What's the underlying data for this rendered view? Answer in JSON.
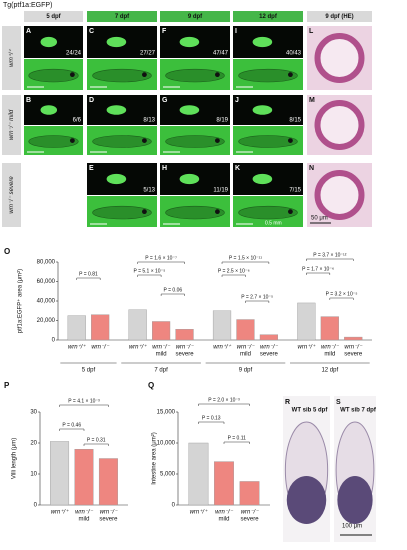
{
  "header": {
    "title": "Tg(ptf1a:EGFP)",
    "columns": [
      "5 dpf",
      "7 dpf",
      "9 dpf",
      "12 dpf",
      "9 dpf (HE)"
    ]
  },
  "rows": [
    "wrn⁺/⁺",
    "wrn⁻/⁻ mild",
    "wrn⁻/⁻ severe"
  ],
  "panels": [
    {
      "letter": "A",
      "count": "24/24"
    },
    {
      "letter": "B",
      "count": "6/6"
    },
    {
      "letter": "C",
      "count": "27/27"
    },
    {
      "letter": "D",
      "count": "8/13"
    },
    {
      "letter": "E",
      "count": "5/13"
    },
    {
      "letter": "F",
      "count": "47/47"
    },
    {
      "letter": "G",
      "count": "8/19"
    },
    {
      "letter": "H",
      "count": "11/19"
    },
    {
      "letter": "I",
      "count": "40/43"
    },
    {
      "letter": "J",
      "count": "8/15"
    },
    {
      "letter": "K",
      "count": "7/15",
      "scale": "0.5 mm"
    }
  ],
  "he_panels": [
    {
      "letter": "L"
    },
    {
      "letter": "M"
    },
    {
      "letter": "N",
      "scale": "50 μm"
    }
  ],
  "chart_data": [
    {
      "type": "bar",
      "letter": "O",
      "ylabel": "ptf1a:EGFP⁺ area (μm²)",
      "ylim": [
        0,
        80000
      ],
      "yticks": [
        0,
        {
          "value": 20000,
          "label": "20,000"
        },
        {
          "value": 40000,
          "label": "40,000"
        },
        {
          "value": 60000,
          "label": "60,000"
        },
        {
          "value": 80000,
          "label": "80,000"
        }
      ],
      "groups": [
        {
          "name": "5 dpf",
          "categories": [
            [
              "wrn⁺/⁺"
            ],
            [
              "wrn⁻/⁻"
            ]
          ],
          "values": [
            25000,
            26000
          ],
          "colors": [
            "#d4d4d4",
            "#ee8680"
          ]
        },
        {
          "name": "7 dpf",
          "categories": [
            [
              "wrn⁺/⁺"
            ],
            [
              "wrn⁻/⁻",
              "mild"
            ],
            [
              "wrn⁻/⁻",
              "severe"
            ]
          ],
          "values": [
            31000,
            19000,
            11000
          ],
          "colors": [
            "#d4d4d4",
            "#ee8680",
            "#ee8680"
          ]
        },
        {
          "name": "9 dpf",
          "categories": [
            [
              "wrn⁺/⁺"
            ],
            [
              "wrn⁻/⁻",
              "mild"
            ],
            [
              "wrn⁻/⁻",
              "severe"
            ]
          ],
          "values": [
            30000,
            21000,
            5500
          ],
          "colors": [
            "#d4d4d4",
            "#ee8680",
            "#ee8680"
          ]
        },
        {
          "name": "12 dpf",
          "categories": [
            [
              "wrn⁺/⁺"
            ],
            [
              "wrn⁻/⁻",
              "mild"
            ],
            [
              "wrn⁻/⁻",
              "severe"
            ]
          ],
          "values": [
            38000,
            24000,
            3000
          ],
          "colors": [
            "#d4d4d4",
            "#ee8680",
            "#ee8680"
          ]
        }
      ],
      "annotations": [
        "P = 0.81",
        "P = 1.6 × 10⁻⁷",
        "P = 5.1 × 10⁻⁵",
        "P = 0.06",
        "P = 1.5 × 10⁻¹¹",
        "P = 2.5 × 10⁻⁶",
        "P = 2.7 × 10⁻⁵",
        "P = 3.7 × 10⁻¹²",
        "P = 1.7 × 10⁻⁶",
        "P = 3.2 × 10⁻⁵"
      ]
    },
    {
      "type": "bar",
      "letter": "P",
      "ylabel": "Villi length (μm)",
      "ylim": [
        0,
        30
      ],
      "yticks": [
        0,
        10,
        20,
        30
      ],
      "groups": [
        {
          "categories": [
            [
              "wrn⁺/⁺"
            ],
            [
              "wrn⁻/⁻",
              "mild"
            ],
            [
              "wrn⁻/⁻",
              "severe"
            ]
          ],
          "values": [
            20.5,
            18,
            15
          ],
          "colors": [
            "#d4d4d4",
            "#ee8680",
            "#ee8680"
          ]
        }
      ],
      "annotations": [
        "P = 4.1 × 10⁻³",
        "P = 0.46",
        "P = 0.31"
      ]
    },
    {
      "type": "bar",
      "letter": "Q",
      "ylabel": "Intestine area (μm²)",
      "ylim": [
        0,
        15000
      ],
      "yticks": [
        0,
        {
          "value": 5000,
          "label": "5,000"
        },
        {
          "value": 10000,
          "label": "10,000"
        },
        {
          "value": 15000,
          "label": "15,000"
        }
      ],
      "groups": [
        {
          "categories": [
            [
              "wrn⁺/⁺"
            ],
            [
              "wrn⁻/⁻",
              "mild"
            ],
            [
              "wrn⁻/⁻",
              "severe"
            ]
          ],
          "values": [
            10000,
            7000,
            3800
          ],
          "colors": [
            "#d4d4d4",
            "#ee8680",
            "#ee8680"
          ]
        }
      ],
      "annotations": [
        "P = 2.0 × 10⁻³",
        "P = 0.13",
        "P = 0.11"
      ]
    }
  ],
  "section_panels": [
    {
      "letter": "R",
      "label": "WT sib 5 dpf"
    },
    {
      "letter": "S",
      "label": "WT sib 7 dpf",
      "scale": "100 μm"
    }
  ]
}
